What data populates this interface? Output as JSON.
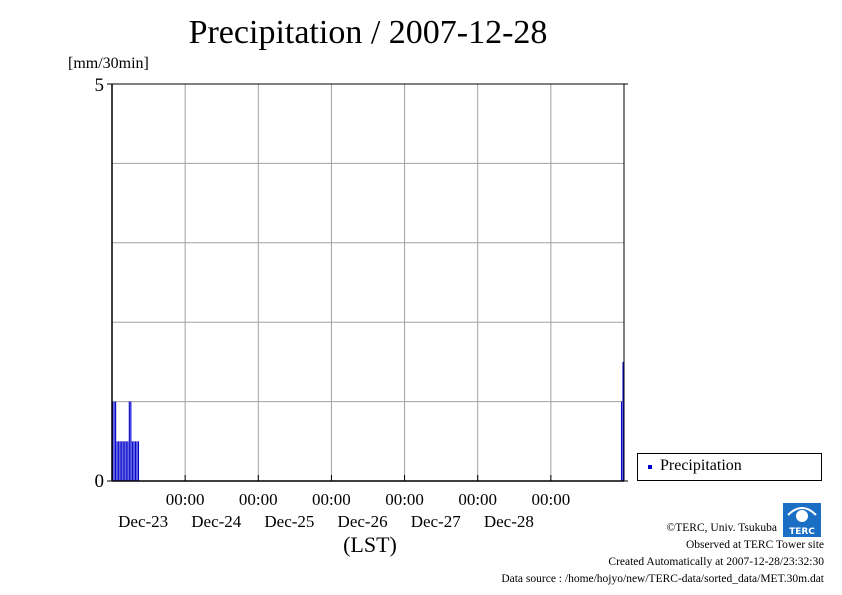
{
  "chart_data": {
    "type": "bar",
    "title": "Precipitation / 2007-12-28",
    "y_unit": "[mm/30min]",
    "ylim": [
      0,
      5
    ],
    "y_ticks": [
      "0",
      "5"
    ],
    "x_ticks": [
      {
        "time": "00:00",
        "date": "Dec-23"
      },
      {
        "time": "00:00",
        "date": "Dec-24"
      },
      {
        "time": "00:00",
        "date": "Dec-25"
      },
      {
        "time": "00:00",
        "date": "Dec-26"
      },
      {
        "time": "00:00",
        "date": "Dec-27"
      },
      {
        "time": "00:00",
        "date": "Dec-28"
      }
    ],
    "xlabel": "(LST)",
    "x_start": "2007-12-22 00:00",
    "x_end": "2007-12-29 00:00",
    "bar_color": "#0000cc",
    "series": [
      {
        "name": "Precipitation",
        "values": [
          {
            "t": "2007-12-22 00:00",
            "v": 1.0
          },
          {
            "t": "2007-12-22 00:30",
            "v": 1.0
          },
          {
            "t": "2007-12-22 01:00",
            "v": 1.0
          },
          {
            "t": "2007-12-22 01:30",
            "v": 0.5
          },
          {
            "t": "2007-12-22 02:00",
            "v": 0.5
          },
          {
            "t": "2007-12-22 02:30",
            "v": 0.5
          },
          {
            "t": "2007-12-22 03:00",
            "v": 0.5
          },
          {
            "t": "2007-12-22 03:30",
            "v": 0.5
          },
          {
            "t": "2007-12-22 04:00",
            "v": 0.5
          },
          {
            "t": "2007-12-22 04:30",
            "v": 0.5
          },
          {
            "t": "2007-12-22 05:00",
            "v": 0.5
          },
          {
            "t": "2007-12-22 05:30",
            "v": 1.0
          },
          {
            "t": "2007-12-22 06:00",
            "v": 1.0
          },
          {
            "t": "2007-12-22 06:30",
            "v": 0.5
          },
          {
            "t": "2007-12-22 07:00",
            "v": 0.5
          },
          {
            "t": "2007-12-22 07:30",
            "v": 0.5
          },
          {
            "t": "2007-12-22 08:00",
            "v": 0.5
          },
          {
            "t": "2007-12-22 08:30",
            "v": 0.5
          },
          {
            "t": "2007-12-28 23:00",
            "v": 1.0
          },
          {
            "t": "2007-12-28 23:30",
            "v": 1.5
          }
        ]
      }
    ],
    "grid": true,
    "legend": "right"
  },
  "credits": {
    "copyright": "©TERC, Univ. Tsukuba",
    "observed": "Observed at TERC Tower site",
    "created": "Created Automatically at 2007-12-28/23:32:30",
    "source": "Data source : /home/hojyo/new/TERC-data/sorted_data/MET.30m.dat",
    "logo_text": "TERC"
  }
}
